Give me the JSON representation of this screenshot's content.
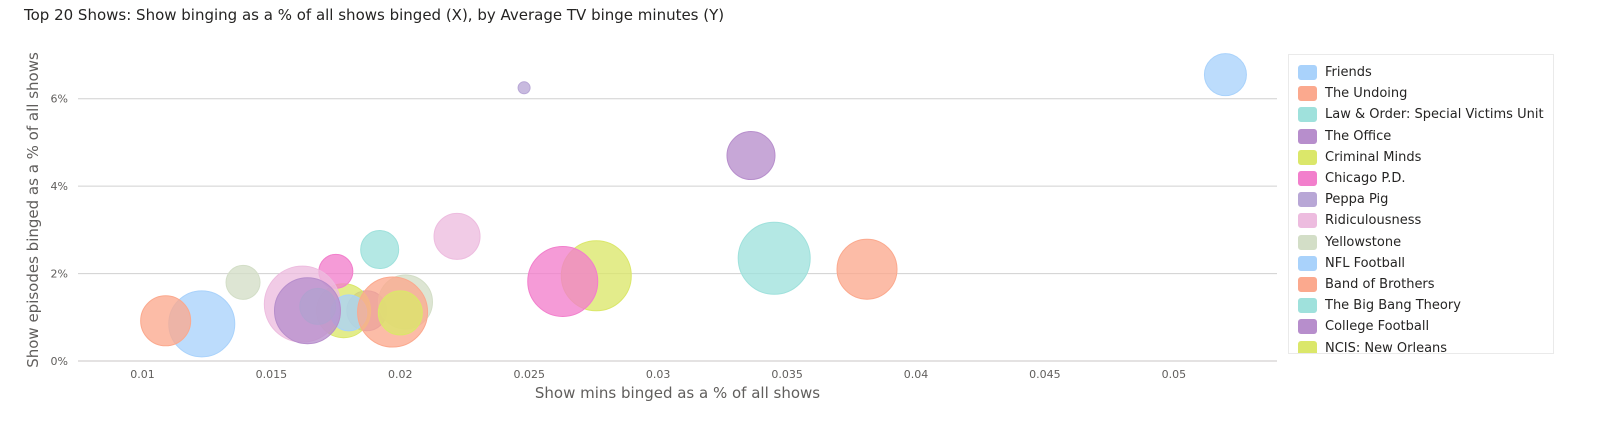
{
  "title": "Top 20 Shows: Show binging as a % of all shows binged (X), by Average TV binge minutes (Y)",
  "chart_data": {
    "type": "scatter",
    "title": "Top 20 Shows: Show binging as a % of all shows binged (X), by Average TV binge minutes (Y)",
    "xlabel": "Show mins binged as a % of all shows",
    "ylabel": "Show episodes binged as a % of all shows",
    "xlim": [
      0.0075,
      0.054
    ],
    "ylim": [
      0,
      0.07
    ],
    "x_ticks": [
      0.01,
      0.015,
      0.02,
      0.025,
      0.03,
      0.035,
      0.04,
      0.045,
      0.05
    ],
    "x_tick_labels": [
      "0.01",
      "0.015",
      "0.02",
      "0.025",
      "0.03",
      "0.035",
      "0.04",
      "0.045",
      "0.05"
    ],
    "y_ticks": [
      0,
      0.02,
      0.04,
      0.06
    ],
    "y_tick_labels": [
      "0%",
      "2%",
      "4%",
      "6%"
    ],
    "grid": true,
    "legend_position": "right",
    "series": [
      {
        "name": "Friends",
        "color": "#a9d2fb",
        "points": [
          {
            "x": 0.052,
            "y": 0.0655,
            "size": 21
          },
          {
            "x": 0.0123,
            "y": 0.0085,
            "size": 33
          }
        ]
      },
      {
        "name": "The Undoing",
        "color": "#fba98e",
        "points": [
          {
            "x": 0.0381,
            "y": 0.021,
            "size": 30
          },
          {
            "x": 0.0109,
            "y": 0.0092,
            "size": 25
          }
        ]
      },
      {
        "name": "Law & Order: Special Victims Unit",
        "color": "#9fe1dc",
        "points": [
          {
            "x": 0.0345,
            "y": 0.0235,
            "size": 36
          },
          {
            "x": 0.0192,
            "y": 0.0255,
            "size": 19
          }
        ]
      },
      {
        "name": "The Office",
        "color": "#b78ecc",
        "points": [
          {
            "x": 0.0336,
            "y": 0.047,
            "size": 24
          },
          {
            "x": 0.0187,
            "y": 0.0115,
            "size": 20
          }
        ]
      },
      {
        "name": "Criminal Minds",
        "color": "#dbe76a",
        "points": [
          {
            "x": 0.0276,
            "y": 0.0195,
            "size": 35
          },
          {
            "x": 0.0178,
            "y": 0.0115,
            "size": 27
          }
        ]
      },
      {
        "name": "Chicago P.D.",
        "color": "#f27fcc",
        "points": [
          {
            "x": 0.0263,
            "y": 0.0182,
            "size": 35
          },
          {
            "x": 0.0175,
            "y": 0.0205,
            "size": 17
          }
        ]
      },
      {
        "name": "Peppa Pig",
        "color": "#b8a7d6",
        "points": [
          {
            "x": 0.0248,
            "y": 0.0625,
            "size": 6
          }
        ]
      },
      {
        "name": "Ridiculousness",
        "color": "#edbcdf",
        "points": [
          {
            "x": 0.0222,
            "y": 0.0285,
            "size": 23
          },
          {
            "x": 0.0162,
            "y": 0.013,
            "size": 38
          }
        ]
      },
      {
        "name": "Yellowstone",
        "color": "#d3dec7",
        "points": [
          {
            "x": 0.0139,
            "y": 0.018,
            "size": 17
          },
          {
            "x": 0.0202,
            "y": 0.0135,
            "size": 27
          }
        ]
      },
      {
        "name": "NFL Football",
        "color": "#a9d2fb",
        "points": [
          {
            "x": 0.018,
            "y": 0.011,
            "size": 18
          }
        ]
      },
      {
        "name": "Band of Brothers",
        "color": "#fba98e",
        "points": [
          {
            "x": 0.0197,
            "y": 0.0112,
            "size": 35
          }
        ]
      },
      {
        "name": "The Big Bang Theory",
        "color": "#9fe1dc",
        "points": [
          {
            "x": 0.0168,
            "y": 0.0125,
            "size": 18
          }
        ]
      },
      {
        "name": "College Football",
        "color": "#b78ecc",
        "points": [
          {
            "x": 0.0164,
            "y": 0.0115,
            "size": 33
          }
        ]
      },
      {
        "name": "NCIS: New Orleans",
        "color": "#dbe76a",
        "points": [
          {
            "x": 0.02,
            "y": 0.011,
            "size": 22
          }
        ]
      }
    ]
  }
}
